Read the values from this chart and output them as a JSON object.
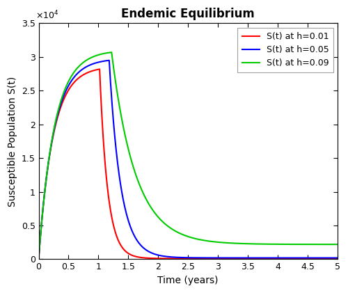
{
  "title": "Endemic Equilibrium",
  "xlabel": "Time (years)",
  "ylabel": "Susceptible Population S(t)",
  "xlim": [
    0,
    5
  ],
  "ylim": [
    0,
    35000
  ],
  "ytick_vals": [
    0,
    5000,
    10000,
    15000,
    20000,
    25000,
    30000,
    35000
  ],
  "ytick_labels": [
    "0",
    "0.5",
    "1",
    "1.5",
    "2",
    "2.5",
    "3",
    "3.5"
  ],
  "xticks": [
    0,
    0.5,
    1.0,
    1.5,
    2.0,
    2.5,
    3.0,
    3.5,
    4.0,
    4.5,
    5.0
  ],
  "xtick_labels": [
    "0",
    "0.5",
    "1",
    "1.5",
    "2",
    "2.5",
    "3",
    "3.5",
    "4",
    "4.5",
    "5"
  ],
  "legend_labels": [
    "S(t) at h=0.01",
    "S(t) at h=0.05",
    "S(t) at h=0.09"
  ],
  "line_colors": [
    "#ff0000",
    "#0000ff",
    "#00cc00"
  ],
  "line_width": 1.5,
  "curves": [
    {
      "S0": 100,
      "S_eq": 100,
      "peak_val": 28200,
      "peak_time": 1.02,
      "rise_rate": 4.2,
      "fall_rate": 7.5
    },
    {
      "S0": 100,
      "S_eq": 200,
      "peak_val": 29500,
      "peak_time": 1.18,
      "rise_rate": 4.0,
      "fall_rate": 5.2
    },
    {
      "S0": 100,
      "S_eq": 2200,
      "peak_val": 30700,
      "peak_time": 1.22,
      "rise_rate": 3.8,
      "fall_rate": 2.5
    }
  ],
  "figsize": [
    5.0,
    4.21
  ],
  "dpi": 100,
  "title_fontsize": 12,
  "axis_fontsize": 10,
  "tick_fontsize": 9,
  "legend_fontsize": 9
}
